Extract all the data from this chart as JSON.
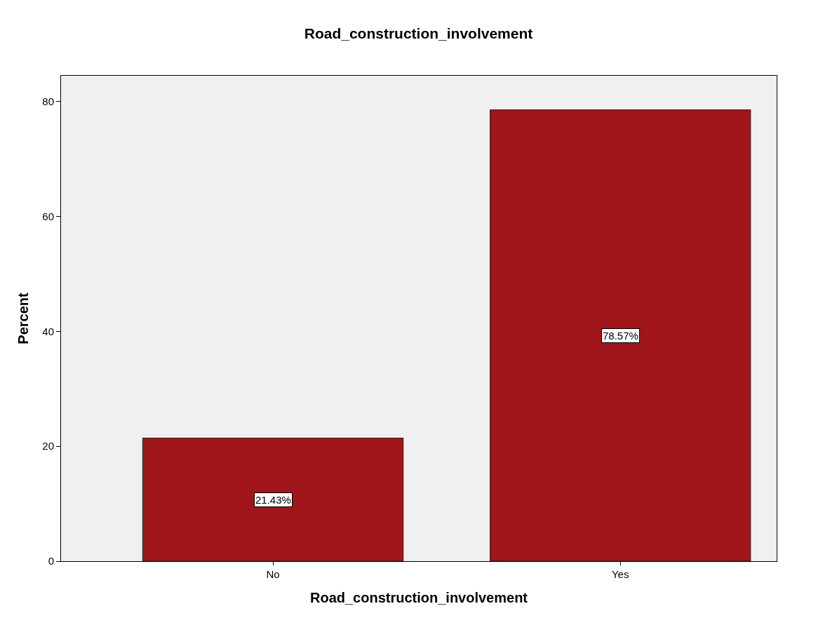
{
  "chart_data": {
    "type": "bar",
    "title": "Road_construction_involvement",
    "xlabel": "Road_construction_involvement",
    "ylabel": "Percent",
    "categories": [
      "No",
      "Yes"
    ],
    "values": [
      21.43,
      78.57
    ],
    "value_labels": [
      "21.43%",
      "78.57%"
    ],
    "color": "#a0161a",
    "ylim": [
      0,
      84.5
    ],
    "yticks": [
      0,
      20,
      40,
      60,
      80
    ],
    "grid": false,
    "legend": false
  }
}
